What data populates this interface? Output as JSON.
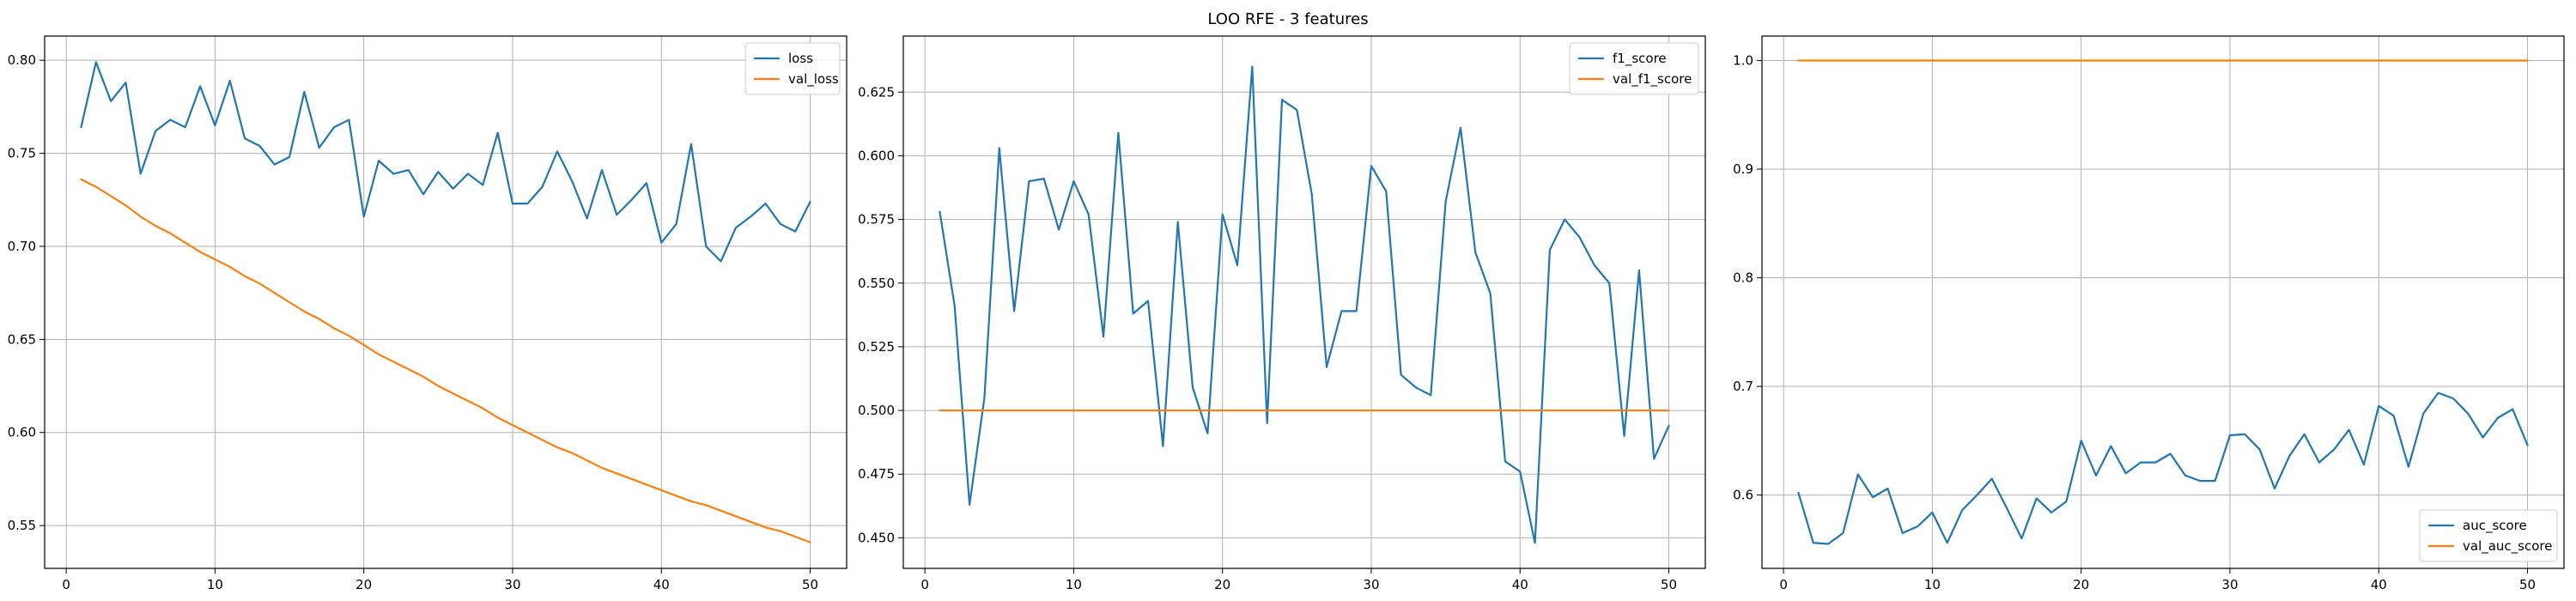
{
  "figure": {
    "suptitle": "LOO RFE - 3 features"
  },
  "chart_data": [
    {
      "type": "line",
      "title": "",
      "xlabel": "",
      "ylabel": "",
      "xlim": [
        -1.45,
        52.45
      ],
      "ylim": [
        0.527,
        0.813
      ],
      "xticks": [
        0,
        10,
        20,
        30,
        40,
        50
      ],
      "yticks": [
        0.55,
        0.6,
        0.65,
        0.7,
        0.75,
        0.8
      ],
      "ytick_labels": [
        "0.55",
        "0.60",
        "0.65",
        "0.70",
        "0.75",
        "0.80"
      ],
      "grid": true,
      "legend_position": "top-right",
      "x": [
        1,
        2,
        3,
        4,
        5,
        6,
        7,
        8,
        9,
        10,
        11,
        12,
        13,
        14,
        15,
        16,
        17,
        18,
        19,
        20,
        21,
        22,
        23,
        24,
        25,
        26,
        27,
        28,
        29,
        30,
        31,
        32,
        33,
        34,
        35,
        36,
        37,
        38,
        39,
        40,
        41,
        42,
        43,
        44,
        45,
        46,
        47,
        48,
        49,
        50
      ],
      "series": [
        {
          "name": "loss",
          "color": "#1f77b4",
          "values": [
            0.764,
            0.799,
            0.778,
            0.788,
            0.739,
            0.762,
            0.768,
            0.764,
            0.786,
            0.765,
            0.789,
            0.758,
            0.754,
            0.744,
            0.748,
            0.783,
            0.753,
            0.764,
            0.768,
            0.716,
            0.746,
            0.739,
            0.741,
            0.728,
            0.74,
            0.731,
            0.739,
            0.733,
            0.761,
            0.723,
            0.723,
            0.732,
            0.751,
            0.735,
            0.715,
            0.741,
            0.717,
            0.725,
            0.734,
            0.702,
            0.712,
            0.755,
            0.7,
            0.692,
            0.71,
            0.716,
            0.723,
            0.712,
            0.708,
            0.724
          ]
        },
        {
          "name": "val_loss",
          "color": "#ff7f0e",
          "values": [
            0.736,
            0.732,
            0.727,
            0.722,
            0.716,
            0.711,
            0.707,
            0.702,
            0.697,
            0.693,
            0.689,
            0.684,
            0.68,
            0.675,
            0.67,
            0.665,
            0.661,
            0.656,
            0.652,
            0.647,
            0.642,
            0.638,
            0.634,
            0.63,
            0.625,
            0.621,
            0.617,
            0.613,
            0.608,
            0.604,
            0.6,
            0.596,
            0.592,
            0.589,
            0.585,
            0.581,
            0.578,
            0.575,
            0.572,
            0.569,
            0.566,
            0.563,
            0.561,
            0.558,
            0.555,
            0.552,
            0.549,
            0.547,
            0.544,
            0.541
          ]
        }
      ]
    },
    {
      "type": "line",
      "title": "",
      "xlabel": "",
      "ylabel": "",
      "xlim": [
        -1.45,
        52.45
      ],
      "ylim": [
        0.438,
        0.647
      ],
      "xticks": [
        0,
        10,
        20,
        30,
        40,
        50
      ],
      "yticks": [
        0.45,
        0.475,
        0.5,
        0.525,
        0.55,
        0.575,
        0.6,
        0.625
      ],
      "ytick_labels": [
        "0.450",
        "0.475",
        "0.500",
        "0.525",
        "0.550",
        "0.575",
        "0.600",
        "0.625"
      ],
      "grid": true,
      "legend_position": "top-right",
      "x": [
        1,
        2,
        3,
        4,
        5,
        6,
        7,
        8,
        9,
        10,
        11,
        12,
        13,
        14,
        15,
        16,
        17,
        18,
        19,
        20,
        21,
        22,
        23,
        24,
        25,
        26,
        27,
        28,
        29,
        30,
        31,
        32,
        33,
        34,
        35,
        36,
        37,
        38,
        39,
        40,
        41,
        42,
        43,
        44,
        45,
        46,
        47,
        48,
        49,
        50
      ],
      "series": [
        {
          "name": "f1_score",
          "color": "#1f77b4",
          "values": [
            0.578,
            0.541,
            0.463,
            0.505,
            0.603,
            0.539,
            0.59,
            0.591,
            0.571,
            0.59,
            0.577,
            0.529,
            0.609,
            0.538,
            0.543,
            0.486,
            0.574,
            0.509,
            0.491,
            0.577,
            0.557,
            0.635,
            0.495,
            0.622,
            0.618,
            0.585,
            0.517,
            0.539,
            0.539,
            0.596,
            0.586,
            0.514,
            0.509,
            0.506,
            0.582,
            0.611,
            0.562,
            0.546,
            0.48,
            0.476,
            0.448,
            0.563,
            0.575,
            0.568,
            0.557,
            0.55,
            0.49,
            0.555,
            0.481,
            0.494
          ]
        },
        {
          "name": "val_f1_score",
          "color": "#ff7f0e",
          "values": [
            0.5,
            0.5,
            0.5,
            0.5,
            0.5,
            0.5,
            0.5,
            0.5,
            0.5,
            0.5,
            0.5,
            0.5,
            0.5,
            0.5,
            0.5,
            0.5,
            0.5,
            0.5,
            0.5,
            0.5,
            0.5,
            0.5,
            0.5,
            0.5,
            0.5,
            0.5,
            0.5,
            0.5,
            0.5,
            0.5,
            0.5,
            0.5,
            0.5,
            0.5,
            0.5,
            0.5,
            0.5,
            0.5,
            0.5,
            0.5,
            0.5,
            0.5,
            0.5,
            0.5,
            0.5,
            0.5,
            0.5,
            0.5,
            0.5,
            0.5
          ]
        }
      ]
    },
    {
      "type": "line",
      "title": "",
      "xlabel": "",
      "ylabel": "",
      "xlim": [
        -1.45,
        52.45
      ],
      "ylim": [
        0.5325,
        1.0225
      ],
      "xticks": [
        0,
        10,
        20,
        30,
        40,
        50
      ],
      "yticks": [
        0.6,
        0.7,
        0.8,
        0.9,
        1.0
      ],
      "ytick_labels": [
        "0.6",
        "0.7",
        "0.8",
        "0.9",
        "1.0"
      ],
      "grid": true,
      "legend_position": "bottom-right",
      "x": [
        1,
        2,
        3,
        4,
        5,
        6,
        7,
        8,
        9,
        10,
        11,
        12,
        13,
        14,
        15,
        16,
        17,
        18,
        19,
        20,
        21,
        22,
        23,
        24,
        25,
        26,
        27,
        28,
        29,
        30,
        31,
        32,
        33,
        34,
        35,
        36,
        37,
        38,
        39,
        40,
        41,
        42,
        43,
        44,
        45,
        46,
        47,
        48,
        49,
        50
      ],
      "series": [
        {
          "name": "auc_score",
          "color": "#1f77b4",
          "values": [
            0.602,
            0.556,
            0.555,
            0.565,
            0.619,
            0.598,
            0.606,
            0.565,
            0.571,
            0.584,
            0.556,
            0.586,
            0.6,
            0.615,
            0.588,
            0.56,
            0.597,
            0.584,
            0.594,
            0.65,
            0.618,
            0.645,
            0.62,
            0.63,
            0.63,
            0.638,
            0.618,
            0.613,
            0.613,
            0.655,
            0.656,
            0.642,
            0.606,
            0.636,
            0.656,
            0.63,
            0.642,
            0.66,
            0.628,
            0.682,
            0.673,
            0.626,
            0.675,
            0.694,
            0.689,
            0.675,
            0.653,
            0.671,
            0.679,
            0.646
          ]
        },
        {
          "name": "val_auc_score",
          "color": "#ff7f0e",
          "values": [
            1.0,
            1.0,
            1.0,
            1.0,
            1.0,
            1.0,
            1.0,
            1.0,
            1.0,
            1.0,
            1.0,
            1.0,
            1.0,
            1.0,
            1.0,
            1.0,
            1.0,
            1.0,
            1.0,
            1.0,
            1.0,
            1.0,
            1.0,
            1.0,
            1.0,
            1.0,
            1.0,
            1.0,
            1.0,
            1.0,
            1.0,
            1.0,
            1.0,
            1.0,
            1.0,
            1.0,
            1.0,
            1.0,
            1.0,
            1.0,
            1.0,
            1.0,
            1.0,
            1.0,
            1.0,
            1.0,
            1.0,
            1.0,
            1.0,
            1.0
          ]
        }
      ]
    }
  ]
}
